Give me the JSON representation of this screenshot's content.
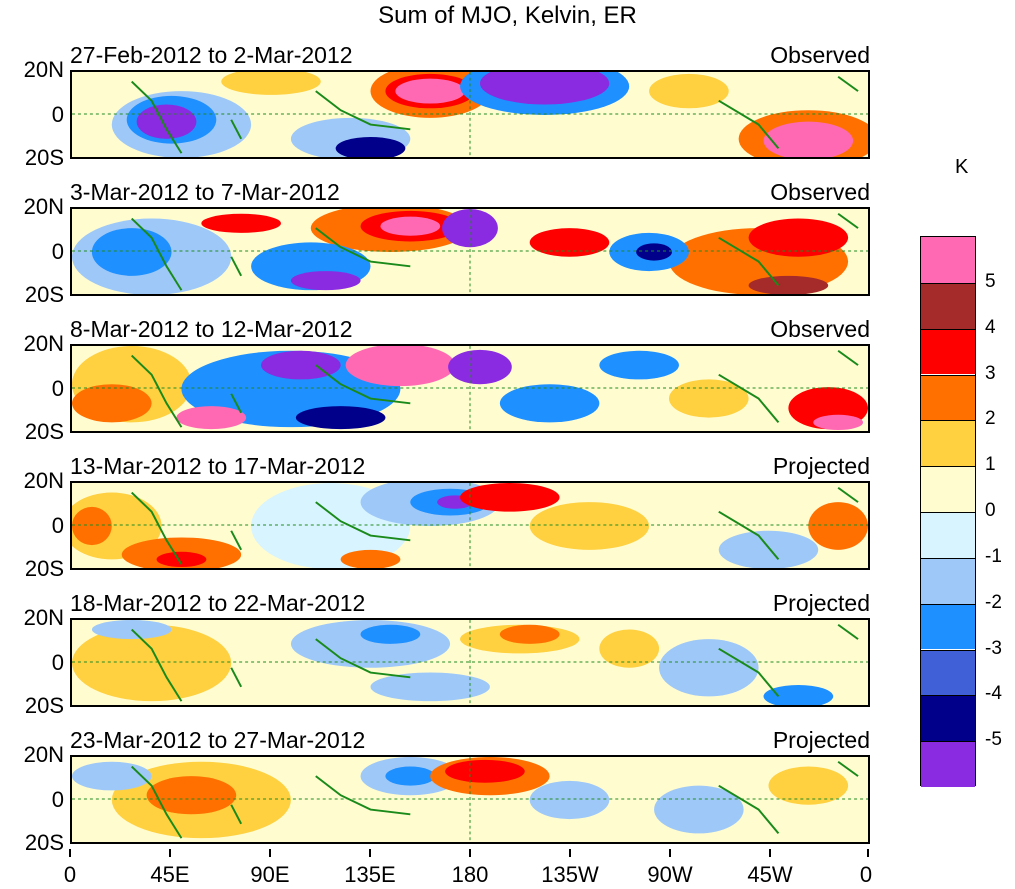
{
  "title": "Sum of MJO, Kelvin, ER",
  "unit": "K",
  "y_ticks": [
    "20N",
    "0",
    "20S"
  ],
  "x_ticks": [
    "0",
    "45E",
    "90E",
    "135E",
    "180",
    "135W",
    "90W",
    "45W",
    "0"
  ],
  "panels": [
    {
      "date_range": "27-Feb-2012 to 2-Mar-2012",
      "status": "Observed"
    },
    {
      "date_range": "3-Mar-2012 to 7-Mar-2012",
      "status": "Observed"
    },
    {
      "date_range": "8-Mar-2012 to 12-Mar-2012",
      "status": "Observed"
    },
    {
      "date_range": "13-Mar-2012 to 17-Mar-2012",
      "status": "Projected"
    },
    {
      "date_range": "18-Mar-2012 to 22-Mar-2012",
      "status": "Projected"
    },
    {
      "date_range": "23-Mar-2012 to 27-Mar-2012",
      "status": "Projected"
    }
  ],
  "colorbar": {
    "labels": [
      "5",
      "4",
      "3",
      "2",
      "1",
      "0",
      "-1",
      "-2",
      "-3",
      "-4",
      "-5"
    ],
    "colors": [
      "#ff69b4",
      "#a52a2a",
      "#ff0000",
      "#ff7000",
      "#ffd040",
      "#fffcd0",
      "#d8f4ff",
      "#9ec8f8",
      "#1e90ff",
      "#4060d8",
      "#00008b",
      "#8a2be2"
    ]
  },
  "colors": {
    "land_outline": "#1a8a1a",
    "guide_line": "#228b22"
  }
}
